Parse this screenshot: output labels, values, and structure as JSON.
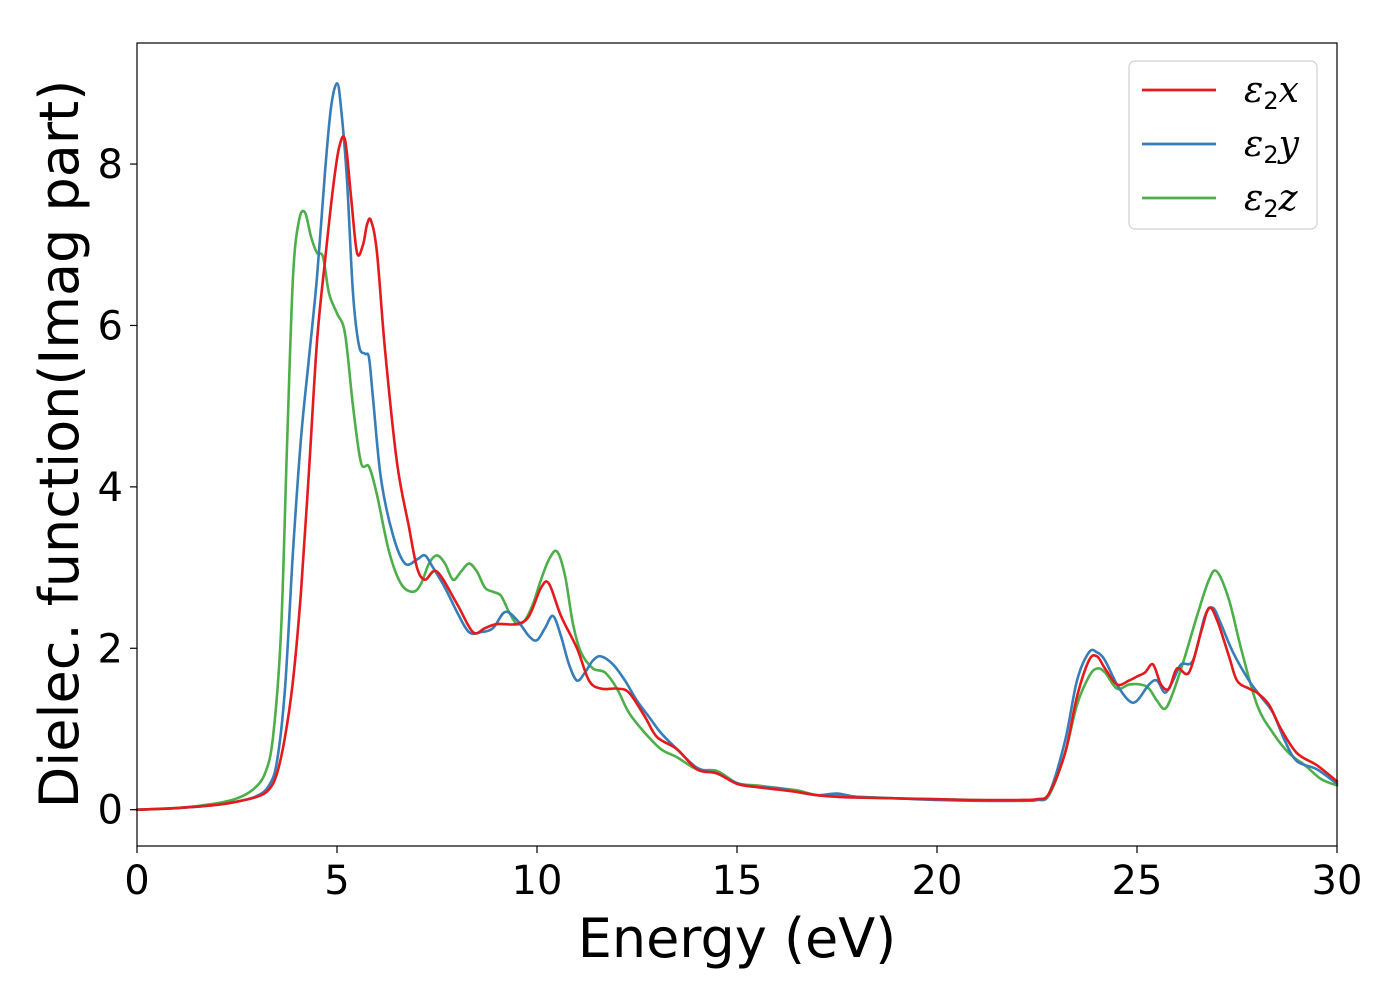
{
  "chart_data": {
    "type": "line",
    "title": "",
    "xlabel": "Energy (eV)",
    "ylabel": "Dielec. function(Imag part)",
    "xlim": [
      0,
      30
    ],
    "ylim": [
      -0.45,
      9.5
    ],
    "xticks": [
      0,
      5,
      10,
      15,
      20,
      25,
      30
    ],
    "yticks": [
      0,
      2,
      4,
      6,
      8
    ],
    "grid": false,
    "legend_position": "top-right",
    "series": [
      {
        "name": "ε₂x",
        "label_base": "ε",
        "label_sub": "2",
        "label_var": "x",
        "color": "#e41a1c",
        "x": [
          0,
          1,
          2,
          2.5,
          3,
          3.3,
          3.5,
          3.7,
          3.9,
          4.1,
          4.3,
          4.5,
          4.7,
          4.9,
          5.05,
          5.2,
          5.35,
          5.5,
          5.65,
          5.75,
          5.85,
          6.0,
          6.2,
          6.5,
          6.8,
          7.0,
          7.2,
          7.5,
          8.0,
          8.4,
          8.7,
          9.0,
          9.5,
          9.8,
          10.1,
          10.3,
          10.6,
          11.0,
          11.3,
          11.6,
          12.0,
          12.3,
          12.7,
          13.0,
          13.5,
          14.0,
          14.5,
          15.0,
          15.5,
          16.0,
          16.5,
          17.0,
          17.5,
          18.0,
          19.0,
          20.0,
          21.0,
          22.0,
          22.5,
          22.8,
          23.2,
          23.5,
          23.8,
          24.0,
          24.2,
          24.5,
          24.8,
          25.0,
          25.2,
          25.4,
          25.6,
          25.8,
          26.0,
          26.3,
          26.6,
          26.8,
          27.0,
          27.3,
          27.5,
          27.8,
          28.0,
          28.3,
          28.6,
          29.0,
          29.5,
          30.0
        ],
        "y": [
          0.0,
          0.02,
          0.06,
          0.1,
          0.16,
          0.25,
          0.45,
          0.9,
          1.6,
          2.7,
          4.2,
          5.8,
          6.8,
          7.7,
          8.2,
          8.3,
          7.6,
          6.9,
          7.0,
          7.25,
          7.3,
          6.9,
          5.7,
          4.3,
          3.5,
          3.0,
          2.85,
          2.95,
          2.55,
          2.2,
          2.25,
          2.3,
          2.3,
          2.4,
          2.75,
          2.8,
          2.4,
          2.0,
          1.6,
          1.5,
          1.5,
          1.45,
          1.15,
          0.9,
          0.75,
          0.5,
          0.45,
          0.32,
          0.28,
          0.25,
          0.22,
          0.18,
          0.16,
          0.15,
          0.14,
          0.13,
          0.12,
          0.12,
          0.13,
          0.2,
          0.7,
          1.4,
          1.85,
          1.9,
          1.75,
          1.55,
          1.6,
          1.65,
          1.7,
          1.8,
          1.55,
          1.5,
          1.75,
          1.7,
          2.2,
          2.5,
          2.35,
          1.9,
          1.6,
          1.5,
          1.45,
          1.3,
          1.0,
          0.7,
          0.55,
          0.35
        ]
      },
      {
        "name": "ε₂y",
        "label_base": "ε",
        "label_sub": "2",
        "label_var": "y",
        "color": "#377eb8",
        "x": [
          0,
          1,
          2,
          2.5,
          3,
          3.3,
          3.5,
          3.7,
          3.9,
          4.1,
          4.3,
          4.5,
          4.7,
          4.85,
          5.0,
          5.1,
          5.25,
          5.4,
          5.55,
          5.7,
          5.8,
          5.9,
          6.1,
          6.4,
          6.7,
          7.0,
          7.2,
          7.4,
          7.7,
          8.0,
          8.3,
          8.6,
          8.9,
          9.2,
          9.5,
          9.8,
          10.0,
          10.2,
          10.4,
          10.6,
          10.8,
          11.0,
          11.2,
          11.4,
          11.6,
          11.9,
          12.2,
          12.5,
          12.8,
          13.1,
          13.5,
          14.0,
          14.5,
          15.0,
          15.5,
          16.0,
          16.5,
          17.0,
          17.5,
          18.0,
          19.0,
          20.0,
          21.0,
          22.0,
          22.5,
          22.8,
          23.2,
          23.5,
          23.8,
          24.0,
          24.2,
          24.5,
          24.8,
          25.0,
          25.3,
          25.5,
          25.7,
          25.9,
          26.1,
          26.4,
          26.7,
          26.9,
          27.1,
          27.4,
          27.8,
          28.1,
          28.4,
          28.7,
          29.0,
          29.5,
          30.0
        ],
        "y": [
          0.0,
          0.02,
          0.06,
          0.1,
          0.17,
          0.3,
          0.6,
          1.5,
          3.2,
          4.6,
          5.6,
          6.6,
          7.9,
          8.7,
          9.0,
          8.7,
          7.8,
          6.4,
          5.75,
          5.65,
          5.6,
          5.1,
          4.1,
          3.4,
          3.05,
          3.1,
          3.15,
          3.0,
          2.75,
          2.45,
          2.2,
          2.2,
          2.25,
          2.45,
          2.35,
          2.15,
          2.1,
          2.25,
          2.4,
          2.15,
          1.8,
          1.6,
          1.7,
          1.85,
          1.9,
          1.8,
          1.6,
          1.35,
          1.15,
          0.95,
          0.75,
          0.52,
          0.45,
          0.33,
          0.28,
          0.27,
          0.22,
          0.18,
          0.2,
          0.16,
          0.14,
          0.12,
          0.11,
          0.11,
          0.12,
          0.2,
          0.85,
          1.6,
          1.95,
          1.95,
          1.85,
          1.55,
          1.35,
          1.35,
          1.55,
          1.6,
          1.45,
          1.6,
          1.8,
          1.85,
          2.4,
          2.5,
          2.3,
          1.95,
          1.6,
          1.4,
          1.2,
          0.85,
          0.6,
          0.5,
          0.32
        ]
      },
      {
        "name": "ε₂z",
        "label_base": "ε",
        "label_sub": "2",
        "label_var": "z",
        "color": "#4daf4a",
        "x": [
          0,
          1,
          2,
          2.5,
          2.9,
          3.2,
          3.4,
          3.6,
          3.75,
          3.9,
          4.05,
          4.2,
          4.35,
          4.5,
          4.65,
          4.8,
          5.0,
          5.2,
          5.4,
          5.6,
          5.8,
          6.0,
          6.3,
          6.6,
          6.9,
          7.1,
          7.3,
          7.5,
          7.7,
          7.9,
          8.1,
          8.3,
          8.5,
          8.7,
          8.9,
          9.1,
          9.3,
          9.5,
          9.7,
          9.9,
          10.1,
          10.3,
          10.5,
          10.7,
          10.9,
          11.1,
          11.4,
          11.7,
          12.0,
          12.3,
          12.7,
          13.1,
          13.5,
          14.0,
          14.5,
          15.0,
          15.5,
          16.0,
          16.5,
          17.0,
          17.5,
          18.0,
          19.0,
          20.0,
          21.0,
          22.0,
          22.5,
          22.8,
          23.2,
          23.5,
          23.8,
          24.0,
          24.2,
          24.5,
          24.8,
          25.1,
          25.3,
          25.5,
          25.7,
          25.9,
          26.2,
          26.5,
          26.8,
          27.0,
          27.3,
          27.6,
          28.0,
          28.4,
          28.8,
          29.2,
          29.6,
          30.0
        ],
        "y": [
          0.0,
          0.02,
          0.08,
          0.14,
          0.25,
          0.45,
          0.9,
          2.2,
          4.5,
          6.6,
          7.3,
          7.4,
          7.1,
          6.9,
          6.85,
          6.4,
          6.15,
          5.9,
          5.0,
          4.3,
          4.25,
          3.9,
          3.2,
          2.8,
          2.7,
          2.8,
          3.05,
          3.15,
          3.05,
          2.85,
          2.95,
          3.05,
          2.95,
          2.75,
          2.7,
          2.65,
          2.45,
          2.3,
          2.35,
          2.55,
          2.85,
          3.1,
          3.2,
          2.9,
          2.3,
          1.95,
          1.75,
          1.7,
          1.5,
          1.2,
          0.95,
          0.75,
          0.65,
          0.5,
          0.48,
          0.33,
          0.3,
          0.27,
          0.24,
          0.18,
          0.17,
          0.16,
          0.14,
          0.13,
          0.12,
          0.11,
          0.12,
          0.18,
          0.7,
          1.3,
          1.65,
          1.75,
          1.7,
          1.5,
          1.55,
          1.55,
          1.5,
          1.35,
          1.25,
          1.45,
          1.9,
          2.4,
          2.85,
          2.95,
          2.6,
          2.0,
          1.3,
          0.95,
          0.7,
          0.55,
          0.38,
          0.3
        ]
      }
    ]
  }
}
